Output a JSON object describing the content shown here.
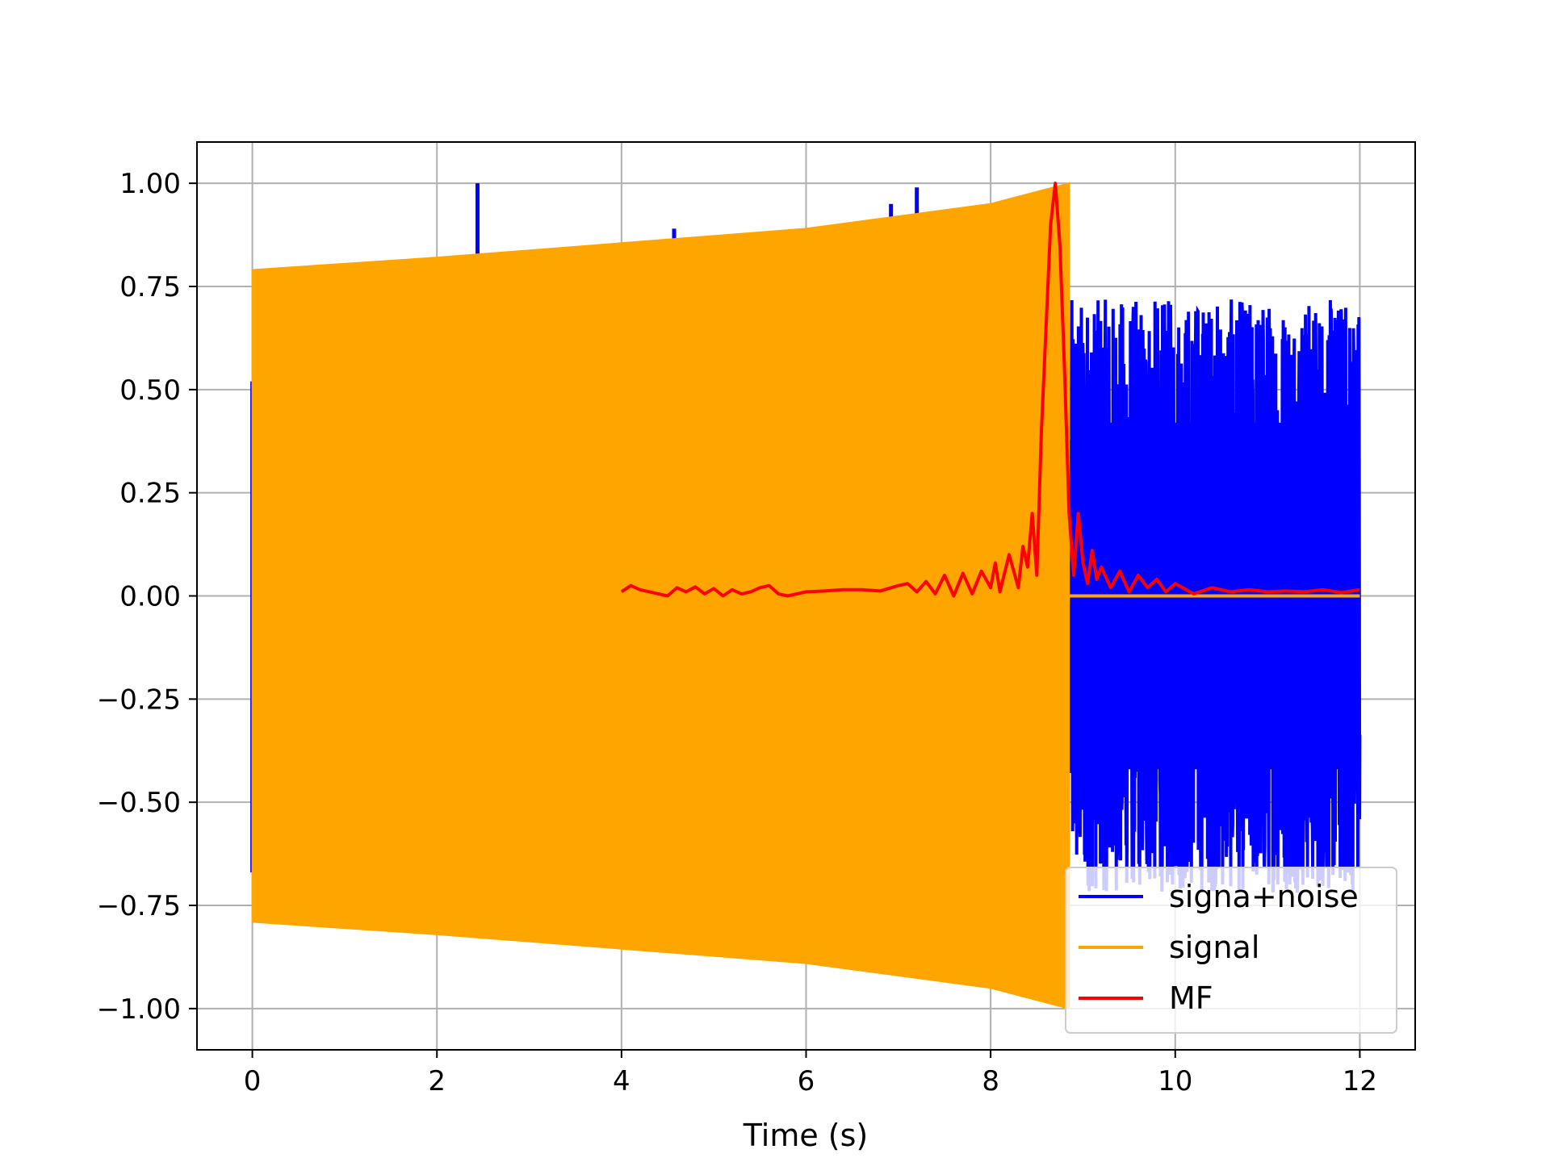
{
  "chart_data": {
    "type": "line",
    "title": "",
    "xlabel": "Time (s)",
    "ylabel": "",
    "xlim": [
      -0.6,
      12.6
    ],
    "ylim": [
      -1.1,
      1.1
    ],
    "xticks": [
      0,
      2,
      4,
      6,
      8,
      10,
      12
    ],
    "xtick_labels": [
      "0",
      "2",
      "4",
      "6",
      "8",
      "10",
      "12"
    ],
    "yticks": [
      1.0,
      0.75,
      0.5,
      0.25,
      0.0,
      -0.25,
      -0.5,
      -0.75,
      -1.0
    ],
    "ytick_labels": [
      "1.00",
      "0.75",
      "0.50",
      "0.25",
      "0.00",
      "−0.25",
      "−0.50",
      "−0.75",
      "−1.00"
    ],
    "grid": true,
    "legend_position": "lower-right",
    "series": [
      {
        "name": "signa+noise",
        "color": "#0000ff",
        "description_points": {
          "t_start": 0,
          "t_end": 12,
          "noise_amplitude": 0.72,
          "spikes": [
            [
              2.44,
              1.0
            ],
            [
              4.57,
              0.89
            ],
            [
              6.92,
              0.95
            ],
            [
              7.2,
              0.99
            ],
            [
              0.0,
              0.52
            ],
            [
              0.0,
              -0.67
            ]
          ]
        }
      },
      {
        "name": "signal",
        "color": "#ffa500",
        "envelope": {
          "t": [
            0,
            2,
            4,
            6,
            8,
            8.85
          ],
          "upper": [
            0.79,
            0.82,
            0.855,
            0.89,
            0.95,
            1.0
          ],
          "lower": [
            -0.79,
            -0.82,
            -0.855,
            -0.89,
            -0.95,
            -1.0
          ]
        },
        "after_end": {
          "t": [
            8.85,
            12
          ],
          "value": 0.0
        }
      },
      {
        "name": "MF",
        "color": "#ff0000",
        "x": [
          4.0,
          4.1,
          4.2,
          4.4,
          4.5,
          4.6,
          4.7,
          4.8,
          4.9,
          5.0,
          5.1,
          5.2,
          5.3,
          5.4,
          5.5,
          5.6,
          5.7,
          5.8,
          6.0,
          6.2,
          6.4,
          6.6,
          6.8,
          7.0,
          7.1,
          7.2,
          7.3,
          7.4,
          7.5,
          7.6,
          7.7,
          7.8,
          7.9,
          8.0,
          8.05,
          8.1,
          8.2,
          8.3,
          8.35,
          8.4,
          8.45,
          8.5,
          8.55,
          8.6,
          8.65,
          8.7,
          8.75,
          8.8,
          8.85,
          8.9,
          8.95,
          9.0,
          9.05,
          9.1,
          9.15,
          9.2,
          9.3,
          9.4,
          9.5,
          9.6,
          9.7,
          9.8,
          9.9,
          10.0,
          10.2,
          10.4,
          10.6,
          10.8,
          11.0,
          11.2,
          11.4,
          11.6,
          11.8,
          12.0
        ],
        "y": [
          0.01,
          0.025,
          0.015,
          0.005,
          0.0,
          0.02,
          0.01,
          0.022,
          0.005,
          0.018,
          0.0,
          0.015,
          0.005,
          0.01,
          0.02,
          0.025,
          0.005,
          0.0,
          0.01,
          0.012,
          0.015,
          0.015,
          0.012,
          0.025,
          0.03,
          0.01,
          0.035,
          0.005,
          0.05,
          0.0,
          0.055,
          0.005,
          0.06,
          0.02,
          0.08,
          0.01,
          0.1,
          0.02,
          0.12,
          0.07,
          0.2,
          0.05,
          0.4,
          0.65,
          0.9,
          1.0,
          0.85,
          0.55,
          0.2,
          0.05,
          0.2,
          0.08,
          0.03,
          0.11,
          0.04,
          0.07,
          0.02,
          0.06,
          0.01,
          0.05,
          0.02,
          0.04,
          0.01,
          0.03,
          0.005,
          0.02,
          0.01,
          0.015,
          0.01,
          0.012,
          0.01,
          0.015,
          0.008,
          0.015
        ]
      }
    ]
  }
}
